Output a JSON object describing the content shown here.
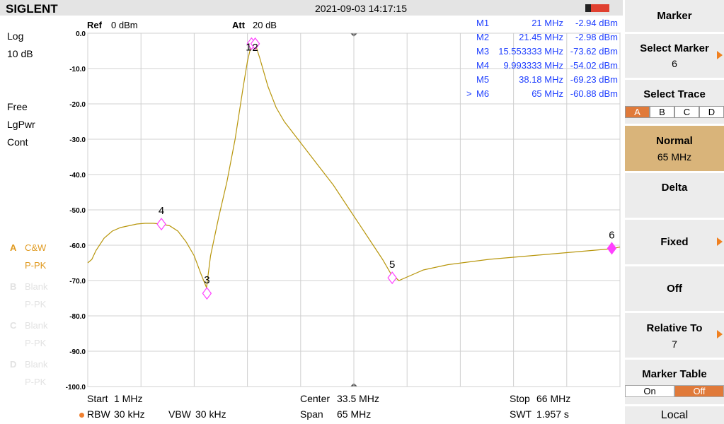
{
  "header": {
    "brand": "SIGLENT",
    "datetime": "2021-09-03 14:17:15"
  },
  "settings": {
    "ref_label": "Ref",
    "ref_value": "0 dBm",
    "att_label": "Att",
    "att_value": "20 dB",
    "scale_type": "Log",
    "scale_div": "10 dB",
    "trigger": "Free",
    "detector": "LgPwr",
    "sweep": "Cont"
  },
  "traces": [
    {
      "letter": "A",
      "mode": "C&W",
      "detect": "P-PK"
    },
    {
      "letter": "B",
      "mode": "Blank",
      "detect": "P-PK"
    },
    {
      "letter": "C",
      "mode": "Blank",
      "detect": "P-PK"
    },
    {
      "letter": "D",
      "mode": "Blank",
      "detect": "P-PK"
    }
  ],
  "footer": {
    "start_label": "Start",
    "start_value": "1 MHz",
    "center_label": "Center",
    "center_value": "33.5 MHz",
    "stop_label": "Stop",
    "stop_value": "66 MHz",
    "rbw_label": "RBW",
    "rbw_value": "30 kHz",
    "vbw_label": "VBW",
    "vbw_value": "30 kHz",
    "span_label": "Span",
    "span_value": "65 MHz",
    "swt_label": "SWT",
    "swt_value": "1.957 s"
  },
  "menu": {
    "title": "Marker",
    "select_marker": "Select Marker",
    "select_marker_value": "6",
    "select_trace": "Select Trace",
    "trace_tabs": [
      "A",
      "B",
      "C",
      "D"
    ],
    "normal": "Normal",
    "normal_value": "65 MHz",
    "delta": "Delta",
    "fixed": "Fixed",
    "off": "Off",
    "relative_to": "Relative To",
    "relative_to_value": "7",
    "marker_table": "Marker Table",
    "table_on": "On",
    "table_off": "Off",
    "local": "Local"
  },
  "active_marker_indicator": ">",
  "chart_data": {
    "type": "line",
    "xlim": [
      1,
      66
    ],
    "ylim": [
      -100,
      0
    ],
    "yticks": [
      {
        "value": 0,
        "label": "0.0"
      },
      {
        "value": -10,
        "label": "-10.0"
      },
      {
        "value": -20,
        "label": "-20.0"
      },
      {
        "value": -30,
        "label": "-30.0"
      },
      {
        "value": -40,
        "label": "-40.0"
      },
      {
        "value": -50,
        "label": "-50.0"
      },
      {
        "value": -60,
        "label": "-60.0"
      },
      {
        "value": -70,
        "label": "-70.0"
      },
      {
        "value": -80,
        "label": "-80.0"
      },
      {
        "value": -90,
        "label": "-90.0"
      },
      {
        "value": -100,
        "label": "-100.0"
      }
    ],
    "xticks": [
      1,
      7.5,
      14,
      20.5,
      27,
      33.5,
      40,
      46.5,
      53,
      59.5,
      66
    ],
    "grid": true,
    "trace": {
      "color": "#b8960c",
      "x": [
        1,
        1.5,
        2,
        3,
        4,
        5,
        6,
        7,
        8,
        9,
        10,
        11,
        12,
        13,
        14,
        14.8,
        15.5,
        16,
        17,
        18,
        19,
        20,
        20.5,
        21,
        21.45,
        22,
        23,
        24,
        25,
        27,
        29,
        31,
        33,
        35,
        37,
        38,
        39,
        40,
        42,
        45,
        50,
        55,
        60,
        65,
        66
      ],
      "y": [
        -65,
        -64,
        -61.5,
        -58,
        -56,
        -55,
        -54.5,
        -54,
        -53.8,
        -53.8,
        -54,
        -54.5,
        -56,
        -59,
        -63,
        -68,
        -72,
        -63,
        -52,
        -42,
        -30,
        -15,
        -8,
        -3,
        -3,
        -7,
        -15,
        -21,
        -25,
        -31,
        -37,
        -43,
        -50,
        -57,
        -64,
        -68,
        -70,
        -69,
        -67,
        -65.5,
        -64,
        -63,
        -62,
        -61,
        -60.5
      ]
    },
    "marker_color": "#ff40ff",
    "markers": [
      {
        "label": "1",
        "table_name": "M1",
        "freq": 21,
        "freq_label": "21 MHz",
        "amp": -2.94,
        "amp_label": "-2.94 dBm"
      },
      {
        "label": "2",
        "table_name": "M2",
        "freq": 21.45,
        "freq_label": "21.45 MHz",
        "amp": -2.98,
        "amp_label": "-2.98 dBm"
      },
      {
        "label": "3",
        "table_name": "M3",
        "freq": 15.553333,
        "freq_label": "15.553333 MHz",
        "amp": -73.62,
        "amp_label": "-73.62 dBm"
      },
      {
        "label": "4",
        "table_name": "M4",
        "freq": 9.993333,
        "freq_label": "9.993333 MHz",
        "amp": -54.02,
        "amp_label": "-54.02 dBm"
      },
      {
        "label": "5",
        "table_name": "M5",
        "freq": 38.18,
        "freq_label": "38.18 MHz",
        "amp": -69.23,
        "amp_label": "-69.23 dBm"
      },
      {
        "label": "6",
        "table_name": "M6",
        "freq": 65,
        "freq_label": "65 MHz",
        "amp": -60.88,
        "amp_label": "-60.88 dBm"
      }
    ],
    "active_marker": 6
  }
}
